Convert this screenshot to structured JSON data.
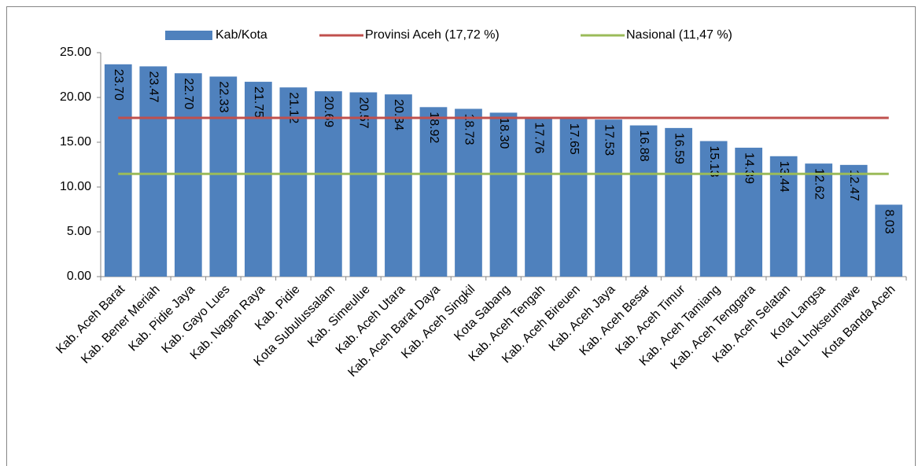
{
  "chart_data": {
    "type": "bar",
    "categories": [
      "Kab. Aceh Barat",
      "Kab. Bener Meriah",
      "Kab. Pidie Jaya",
      "Kab. Gayo Lues",
      "Kab. Nagan Raya",
      "Kab. Pidie",
      "Kota Subulussalam",
      "Kab. Simeulue",
      "Kab. Aceh Utara",
      "Kab. Aceh Barat Daya",
      "Kab. Aceh Singkil",
      "Kota Sabang",
      "Kab. Aceh Tengah",
      "Kab. Aceh Bireuen",
      "Kab. Aceh Jaya",
      "Kab. Aceh Besar",
      "Kab. Aceh Timur",
      "Kab. Aceh Tamiang",
      "Kab. Aceh Tenggara",
      "Kab. Aceh Selatan",
      "Kota Langsa",
      "Kota Lhokseumawe",
      "Kota Banda Aceh"
    ],
    "series": [
      {
        "name": "Kab/Kota",
        "color": "#4f81bd",
        "values": [
          23.7,
          23.47,
          22.7,
          22.33,
          21.75,
          21.12,
          20.69,
          20.57,
          20.34,
          18.92,
          18.73,
          18.3,
          17.76,
          17.65,
          17.53,
          16.88,
          16.59,
          15.13,
          14.39,
          13.44,
          12.62,
          12.47,
          8.03
        ],
        "value_labels": [
          "23.70",
          "23.47",
          "22.70",
          "22.33",
          "21.75",
          "21.12",
          "20.69",
          "20.57",
          "20.34",
          "18.92",
          "18.73",
          "18.30",
          "17.76",
          "17.65",
          "17.53",
          "16.88",
          "16.59",
          "15.13",
          "14.39",
          "13.44",
          "12.62",
          "12.47",
          "8.03"
        ]
      }
    ],
    "reference_lines": [
      {
        "name": "Provinsi Aceh (17,72 %)",
        "value": 17.72,
        "color": "#c0504d"
      },
      {
        "name": "Nasional (11,47 %)",
        "value": 11.47,
        "color": "#9bbb59"
      }
    ],
    "ylim": [
      0,
      25
    ],
    "yticks": [
      {
        "value": 0,
        "label": "0.00"
      },
      {
        "value": 5,
        "label": "5.00"
      },
      {
        "value": 10,
        "label": "10.00"
      },
      {
        "value": 15,
        "label": "15.00"
      },
      {
        "value": 20,
        "label": "20.00"
      },
      {
        "value": 25,
        "label": "25.00"
      }
    ],
    "legend": "top"
  }
}
